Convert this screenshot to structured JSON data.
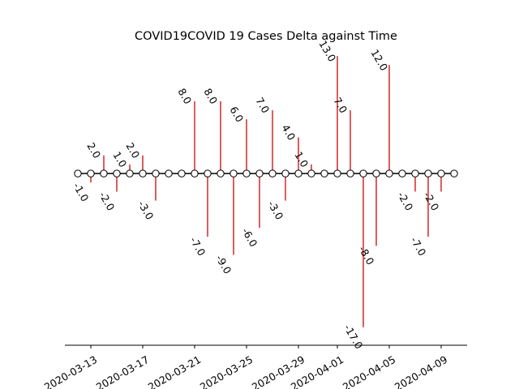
{
  "chart_data": {
    "type": "timeline",
    "title": "COVID19COVID 19 Cases Delta against Time",
    "xlabel": "",
    "ylabel": "",
    "x": [
      "2020-03-12",
      "2020-03-13",
      "2020-03-14",
      "2020-03-15",
      "2020-03-16",
      "2020-03-17",
      "2020-03-18",
      "2020-03-19",
      "2020-03-20",
      "2020-03-21",
      "2020-03-22",
      "2020-03-23",
      "2020-03-24",
      "2020-03-25",
      "2020-03-26",
      "2020-03-27",
      "2020-03-28",
      "2020-03-29",
      "2020-03-30",
      "2020-03-31",
      "2020-04-01",
      "2020-04-02",
      "2020-04-03",
      "2020-04-04",
      "2020-04-05",
      "2020-04-06",
      "2020-04-07",
      "2020-04-08",
      "2020-04-09",
      "2020-04-10"
    ],
    "values": [
      0,
      -1.0,
      2.0,
      -2.0,
      1.0,
      2.0,
      -3.0,
      0,
      0,
      8.0,
      -7.0,
      8.0,
      -9.0,
      6.0,
      -6.0,
      7.0,
      -3.0,
      4.0,
      1.0,
      0,
      13.0,
      7.0,
      -17.0,
      -8.0,
      12.0,
      0,
      -2.0,
      -7.0,
      -2.0,
      0
    ],
    "point_labels": [
      "",
      "-1.0",
      "2.0",
      "-2.0",
      "1.0",
      "2.0",
      "-3.0",
      "",
      "",
      "8.0",
      "-7.0",
      "8.0",
      "-9.0",
      "6.0",
      "-6.0",
      "7.0",
      "-3.0",
      "4.0",
      "1.0",
      "",
      "13.0",
      "7.0",
      "-17.0",
      "-8.0",
      "12.0",
      "",
      "-2.0",
      "-7.0",
      "-2.0",
      ""
    ],
    "x_ticks": [
      "2020-03-13",
      "2020-03-17",
      "2020-03-21",
      "2020-03-25",
      "2020-03-29",
      "2020-04-01",
      "2020-04-05",
      "2020-04-09"
    ],
    "x_tick_positions": [
      "2020-03-13",
      "2020-03-17",
      "2020-03-21",
      "2020-03-25",
      "2020-03-29",
      "2020-04-01",
      "2020-04-05",
      "2020-04-09"
    ],
    "xlim": [
      "2020-03-11",
      "2020-04-11"
    ],
    "ylim": [
      -19,
      14
    ],
    "colors": {
      "stem": "#d62728",
      "baseline": "#000000",
      "marker_face": "#ffffff",
      "marker_edge": "#000000"
    },
    "grid": false,
    "y_axis_visible": false
  }
}
